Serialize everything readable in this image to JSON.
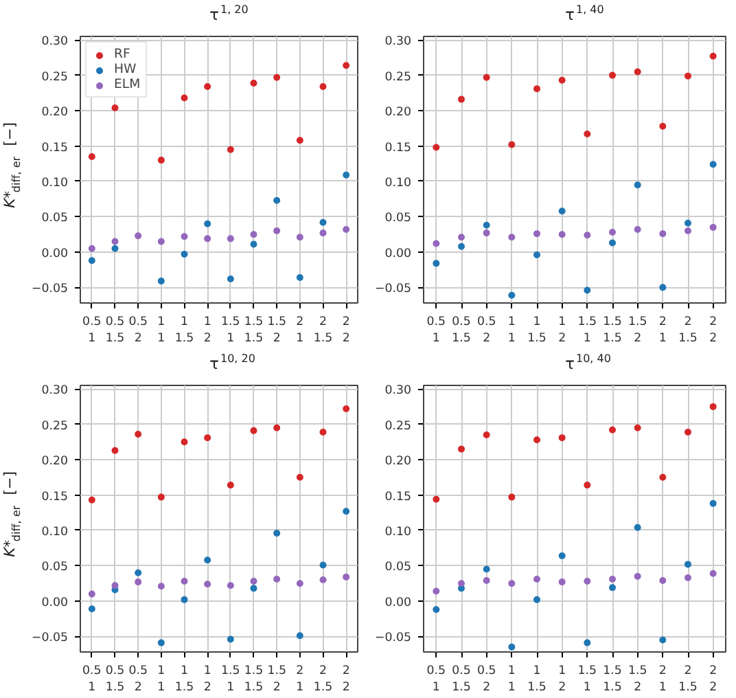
{
  "chart_data": [
    {
      "type": "scatter",
      "title": "τ$^{1, 20}$",
      "ylabel": "K*$_{diff, er}$   [−]",
      "categories": [
        "0.5\n1",
        "0.5\n1.5",
        "0.5\n2",
        "1\n1",
        "1\n1.5",
        "1\n2",
        "1.5\n1",
        "1.5\n1.5",
        "1.5\n2",
        "2\n1",
        "2\n1.5",
        "2\n2"
      ],
      "ylim": [
        -0.072,
        0.305
      ],
      "yticks": [
        {
          "value": -0.05,
          "label": "−0.05"
        },
        {
          "value": 0,
          "label": "0.00"
        },
        {
          "value": 0.05,
          "label": "0.05"
        },
        {
          "value": 0.1,
          "label": "0.10"
        },
        {
          "value": 0.15,
          "label": "0.15"
        },
        {
          "value": 0.2,
          "label": "0.20"
        },
        {
          "value": 0.25,
          "label": "0.25"
        },
        {
          "value": 0.3,
          "label": "0.30"
        }
      ],
      "grid": true,
      "legend": "top left",
      "marker": "circle",
      "series": [
        {
          "name": "RF",
          "color": "#d62728",
          "values": [
            0.135,
            0.204,
            null,
            0.13,
            0.218,
            0.234,
            0.145,
            0.239,
            0.247,
            0.158,
            0.234,
            0.264
          ]
        },
        {
          "name": "HW",
          "color": "#1f77b4",
          "values": [
            -0.012,
            0.005,
            null,
            -0.041,
            -0.003,
            0.04,
            -0.038,
            0.011,
            0.073,
            -0.036,
            0.042,
            0.109
          ]
        },
        {
          "name": "ELM",
          "color": "#9467bd",
          "values": [
            0.005,
            0.015,
            0.023,
            0.015,
            0.022,
            0.019,
            0.019,
            0.025,
            0.03,
            0.021,
            0.027,
            0.032
          ]
        }
      ]
    },
    {
      "type": "scatter",
      "title": "τ$^{1, 40}$",
      "categories": [
        "0.5\n1",
        "0.5\n1.5",
        "0.5\n2",
        "1\n1",
        "1\n1.5",
        "1\n2",
        "1.5\n1",
        "1.5\n1.5",
        "1.5\n2",
        "2\n1",
        "2\n1.5",
        "2\n2"
      ],
      "ylim": [
        -0.072,
        0.305
      ],
      "yticks": [
        {
          "value": -0.05,
          "label": "−0.05"
        },
        {
          "value": 0,
          "label": "0.00"
        },
        {
          "value": 0.05,
          "label": "0.05"
        },
        {
          "value": 0.1,
          "label": "0.10"
        },
        {
          "value": 0.15,
          "label": "0.15"
        },
        {
          "value": 0.2,
          "label": "0.20"
        },
        {
          "value": 0.25,
          "label": "0.25"
        },
        {
          "value": 0.3,
          "label": "0.30"
        }
      ],
      "grid": true,
      "marker": "circle",
      "series": [
        {
          "color": "#d62728",
          "values": [
            0.148,
            0.216,
            0.247,
            0.152,
            0.231,
            0.243,
            0.167,
            0.25,
            0.255,
            0.178,
            0.249,
            0.277
          ]
        },
        {
          "color": "#1f77b4",
          "values": [
            -0.016,
            0.008,
            0.038,
            -0.061,
            -0.004,
            0.058,
            -0.054,
            0.013,
            0.095,
            -0.05,
            0.041,
            0.124
          ]
        },
        {
          "color": "#9467bd",
          "values": [
            0.012,
            0.021,
            0.027,
            0.021,
            0.026,
            0.025,
            0.024,
            0.028,
            0.032,
            0.026,
            0.03,
            0.035
          ]
        }
      ]
    },
    {
      "type": "scatter",
      "title": "τ$^{10, 20}$",
      "ylabel": "K*$_{diff, er}$   [−]",
      "categories": [
        "0.5\n1",
        "0.5\n1.5",
        "0.5\n2",
        "1\n1",
        "1\n1.5",
        "1\n2",
        "1.5\n1",
        "1.5\n1.5",
        "1.5\n2",
        "2\n1",
        "2\n1.5",
        "2\n2"
      ],
      "ylim": [
        -0.072,
        0.305
      ],
      "yticks": [
        {
          "value": -0.05,
          "label": "−0.05"
        },
        {
          "value": 0,
          "label": "0.00"
        },
        {
          "value": 0.05,
          "label": "0.05"
        },
        {
          "value": 0.1,
          "label": "0.10"
        },
        {
          "value": 0.15,
          "label": "0.15"
        },
        {
          "value": 0.2,
          "label": "0.20"
        },
        {
          "value": 0.25,
          "label": "0.25"
        },
        {
          "value": 0.3,
          "label": "0.30"
        }
      ],
      "grid": true,
      "marker": "circle",
      "series": [
        {
          "color": "#d62728",
          "values": [
            0.143,
            0.213,
            0.236,
            0.147,
            0.225,
            0.231,
            0.164,
            0.241,
            0.245,
            0.175,
            0.239,
            0.272
          ]
        },
        {
          "color": "#1f77b4",
          "values": [
            -0.011,
            0.016,
            0.04,
            -0.059,
            0.002,
            0.058,
            -0.054,
            0.018,
            0.096,
            -0.049,
            0.051,
            0.127
          ]
        },
        {
          "color": "#9467bd",
          "values": [
            0.01,
            0.022,
            0.027,
            0.021,
            0.028,
            0.024,
            0.022,
            0.028,
            0.031,
            0.025,
            0.03,
            0.034
          ]
        }
      ]
    },
    {
      "type": "scatter",
      "title": "τ$^{10, 40}$",
      "categories": [
        "0.5\n1",
        "0.5\n1.5",
        "0.5\n2",
        "1\n1",
        "1\n1.5",
        "1\n2",
        "1.5\n1",
        "1.5\n1.5",
        "1.5\n2",
        "2\n1",
        "2\n1.5",
        "2\n2"
      ],
      "ylim": [
        -0.072,
        0.305
      ],
      "yticks": [
        {
          "value": -0.05,
          "label": "−0.05"
        },
        {
          "value": 0,
          "label": "0.00"
        },
        {
          "value": 0.05,
          "label": "0.05"
        },
        {
          "value": 0.1,
          "label": "0.10"
        },
        {
          "value": 0.15,
          "label": "0.15"
        },
        {
          "value": 0.2,
          "label": "0.20"
        },
        {
          "value": 0.25,
          "label": "0.25"
        },
        {
          "value": 0.3,
          "label": "0.30"
        }
      ],
      "grid": true,
      "marker": "circle",
      "series": [
        {
          "color": "#d62728",
          "values": [
            0.144,
            0.215,
            0.235,
            0.147,
            0.228,
            0.231,
            0.164,
            0.242,
            0.245,
            0.175,
            0.239,
            0.275
          ]
        },
        {
          "color": "#1f77b4",
          "values": [
            -0.012,
            0.018,
            0.045,
            -0.065,
            0.002,
            0.064,
            -0.059,
            0.019,
            0.104,
            -0.055,
            0.052,
            0.138
          ]
        },
        {
          "color": "#9467bd",
          "values": [
            0.014,
            0.025,
            0.029,
            0.025,
            0.031,
            0.027,
            0.028,
            0.031,
            0.035,
            0.029,
            0.033,
            0.039
          ]
        }
      ]
    }
  ]
}
